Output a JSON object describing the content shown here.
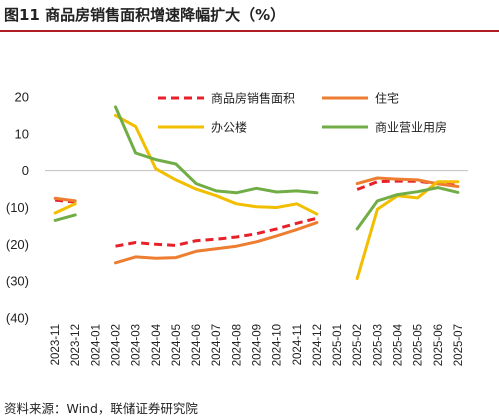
{
  "figure": {
    "title": "图11 商品房销售面积增速降幅扩大（%）",
    "source": "资料来源：Wind，联储证券研究院"
  },
  "chart_data": {
    "type": "line",
    "x": [
      "2023-11",
      "2023-12",
      "2024-01",
      "2024-02",
      "2024-03",
      "2024-04",
      "2024-05",
      "2024-06",
      "2024-07",
      "2024-08",
      "2024-09",
      "2024-10",
      "2024-11",
      "2024-12",
      "2025-01",
      "2025-02",
      "2025-03",
      "2025-04",
      "2025-05",
      "2025-06",
      "2025-07"
    ],
    "ylim": [
      -40,
      20
    ],
    "yticks": [
      20,
      10,
      0,
      -10,
      -20,
      -30,
      -40
    ],
    "ytick_labels": [
      "20",
      "10",
      "0",
      "(10)",
      "(20)",
      "(30)",
      "(40)"
    ],
    "legend_placement": "top",
    "series": [
      {
        "name": "商品房销售面积",
        "color": "#e8202a",
        "dashed": true,
        "values": [
          -8.0,
          -8.5,
          null,
          -20.5,
          -19.5,
          -20.0,
          -20.3,
          -19.0,
          -18.6,
          -18.0,
          -17.1,
          -15.8,
          -14.3,
          -12.9,
          null,
          -5.1,
          -3.0,
          -2.8,
          -2.9,
          -3.5,
          -4.0
        ]
      },
      {
        "name": "住宅",
        "color": "#ed7d31",
        "dashed": false,
        "values": [
          -7.5,
          -8.2,
          null,
          -25.0,
          -23.4,
          -23.8,
          -23.6,
          -21.9,
          -21.2,
          -20.5,
          -19.3,
          -17.7,
          -16.0,
          -14.1,
          null,
          -3.5,
          -2.0,
          -2.3,
          -2.5,
          -3.6,
          -4.3
        ]
      },
      {
        "name": "办公楼",
        "color": "#f2be00",
        "dashed": false,
        "values": [
          -11.5,
          -9.0,
          null,
          15.0,
          12.0,
          0.5,
          -2.5,
          -5.0,
          -6.8,
          -9.0,
          -9.8,
          -10.0,
          -9.0,
          -11.8,
          null,
          -29.3,
          -10.5,
          -6.8,
          -7.4,
          -3.0,
          -3.0
        ]
      },
      {
        "name": "商业营业用房",
        "color": "#70ad47",
        "dashed": false,
        "values": [
          -13.5,
          -12.0,
          null,
          17.3,
          4.8,
          3.0,
          1.8,
          -3.5,
          -5.5,
          -6.0,
          -4.8,
          -5.8,
          -5.5,
          -6.0,
          null,
          -15.8,
          -8.2,
          -6.5,
          -5.7,
          -4.6,
          -5.9
        ]
      }
    ]
  }
}
